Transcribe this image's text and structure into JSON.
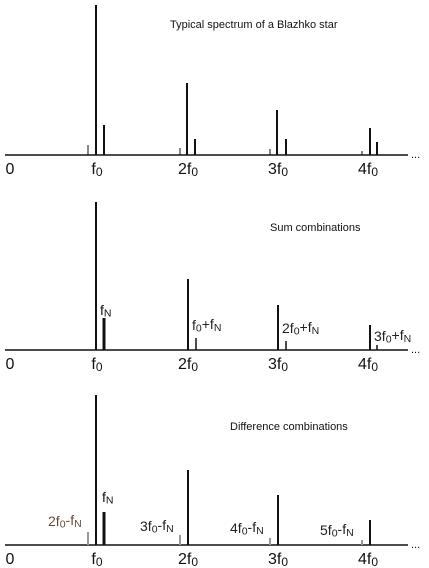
{
  "panels": [
    {
      "title": "Typical spectrum of a Blazhko star",
      "axis_labels": [
        "0",
        "f0",
        "2f0",
        "3f0",
        "4f0"
      ],
      "ellipsis": "...",
      "line_labels": []
    },
    {
      "title": "Sum combinations",
      "axis_labels": [
        "0",
        "f0",
        "2f0",
        "3f0",
        "4f0"
      ],
      "ellipsis": "...",
      "line_labels": [
        "fN",
        "f0+fN",
        "2f0+fN",
        "3f0+fN"
      ]
    },
    {
      "title": "Difference combinations",
      "axis_labels": [
        "0",
        "f0",
        "2f0",
        "3f0",
        "4f0"
      ],
      "ellipsis": "...",
      "line_labels": [
        "2f0-fN",
        "fN",
        "3f0-fN",
        "4f0-fN",
        "5f0-fN"
      ]
    }
  ]
}
